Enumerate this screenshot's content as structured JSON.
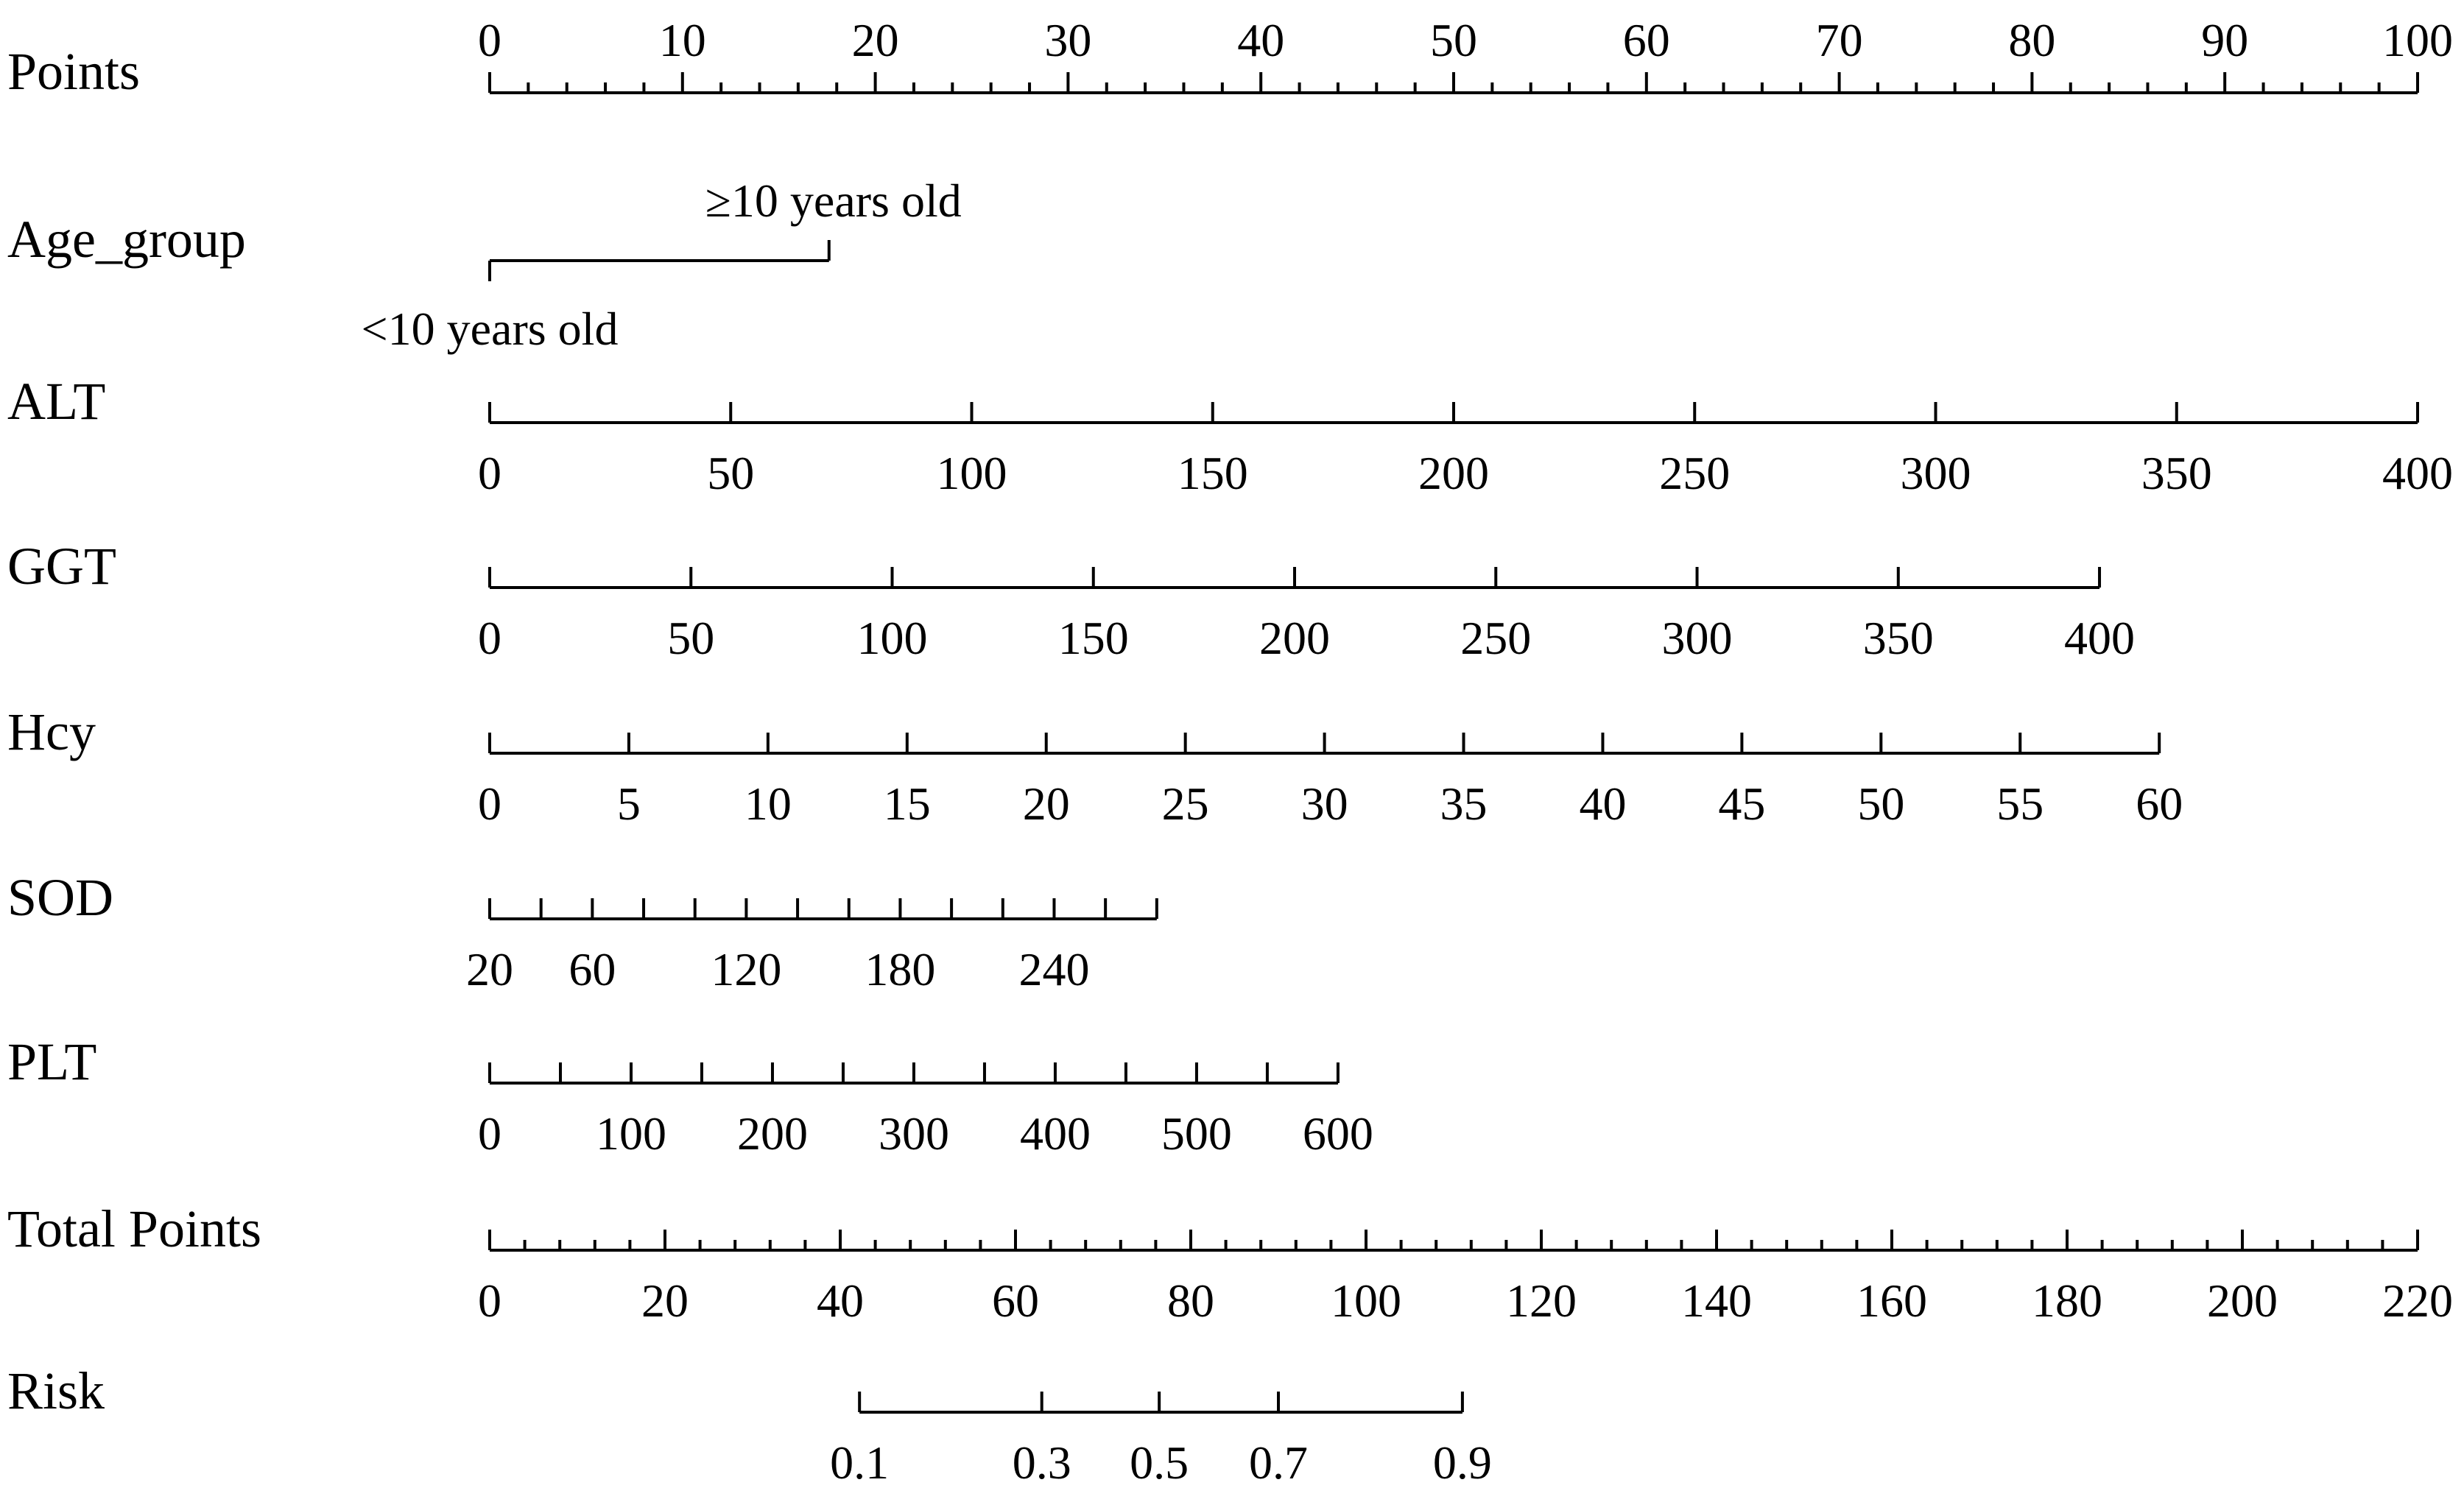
{
  "chart_data": {
    "type": "nomogram",
    "rows": [
      {
        "name": "Points",
        "axis": [
          0,
          100
        ],
        "ticks": [
          0,
          10,
          20,
          30,
          40,
          50,
          60,
          70,
          80,
          90,
          100
        ],
        "minor_step": 2,
        "labels_above": true
      },
      {
        "name": "Age_group",
        "categorical": true,
        "levels": [
          {
            "label": "<10 years old",
            "points": 0
          },
          {
            "label": "≥10 years old",
            "points": 17.6
          }
        ]
      },
      {
        "name": "ALT",
        "axis": [
          0,
          400
        ],
        "points_range": [
          0,
          100
        ],
        "ticks": [
          0,
          50,
          100,
          150,
          200,
          250,
          300,
          350,
          400
        ]
      },
      {
        "name": "GGT",
        "axis": [
          0,
          400
        ],
        "points_range": [
          0,
          83.5
        ],
        "ticks": [
          0,
          50,
          100,
          150,
          200,
          250,
          300,
          350,
          400
        ]
      },
      {
        "name": "Hcy",
        "axis": [
          0,
          60
        ],
        "points_range": [
          0,
          86.6
        ],
        "ticks": [
          0,
          5,
          10,
          15,
          20,
          25,
          30,
          35,
          40,
          45,
          50,
          55,
          60
        ]
      },
      {
        "name": "SOD",
        "axis": [
          20,
          280
        ],
        "points_range": [
          0,
          34.6
        ],
        "ticks": [
          20,
          40,
          60,
          80,
          100,
          120,
          140,
          160,
          180,
          200,
          220,
          240,
          260,
          280
        ],
        "tick_labels": [
          20,
          60,
          120,
          180,
          240
        ]
      },
      {
        "name": "PLT",
        "axis": [
          0,
          600
        ],
        "points_range": [
          0,
          44
        ],
        "ticks": [
          0,
          50,
          100,
          150,
          200,
          250,
          300,
          350,
          400,
          450,
          500,
          550,
          600
        ],
        "tick_labels": [
          0,
          100,
          200,
          300,
          400,
          500,
          600
        ]
      },
      {
        "name": "Total Points",
        "axis": [
          0,
          220
        ],
        "ticks": [
          0,
          20,
          40,
          60,
          80,
          100,
          120,
          140,
          160,
          180,
          200,
          220
        ],
        "minor_step": 4
      },
      {
        "name": "Risk",
        "axis": [
          0.1,
          0.9
        ],
        "ticks": [
          0.1,
          0.3,
          0.5,
          0.7,
          0.9
        ],
        "total_points": [
          42.2,
          63.0,
          76.4,
          90.0,
          111.0
        ]
      }
    ]
  }
}
